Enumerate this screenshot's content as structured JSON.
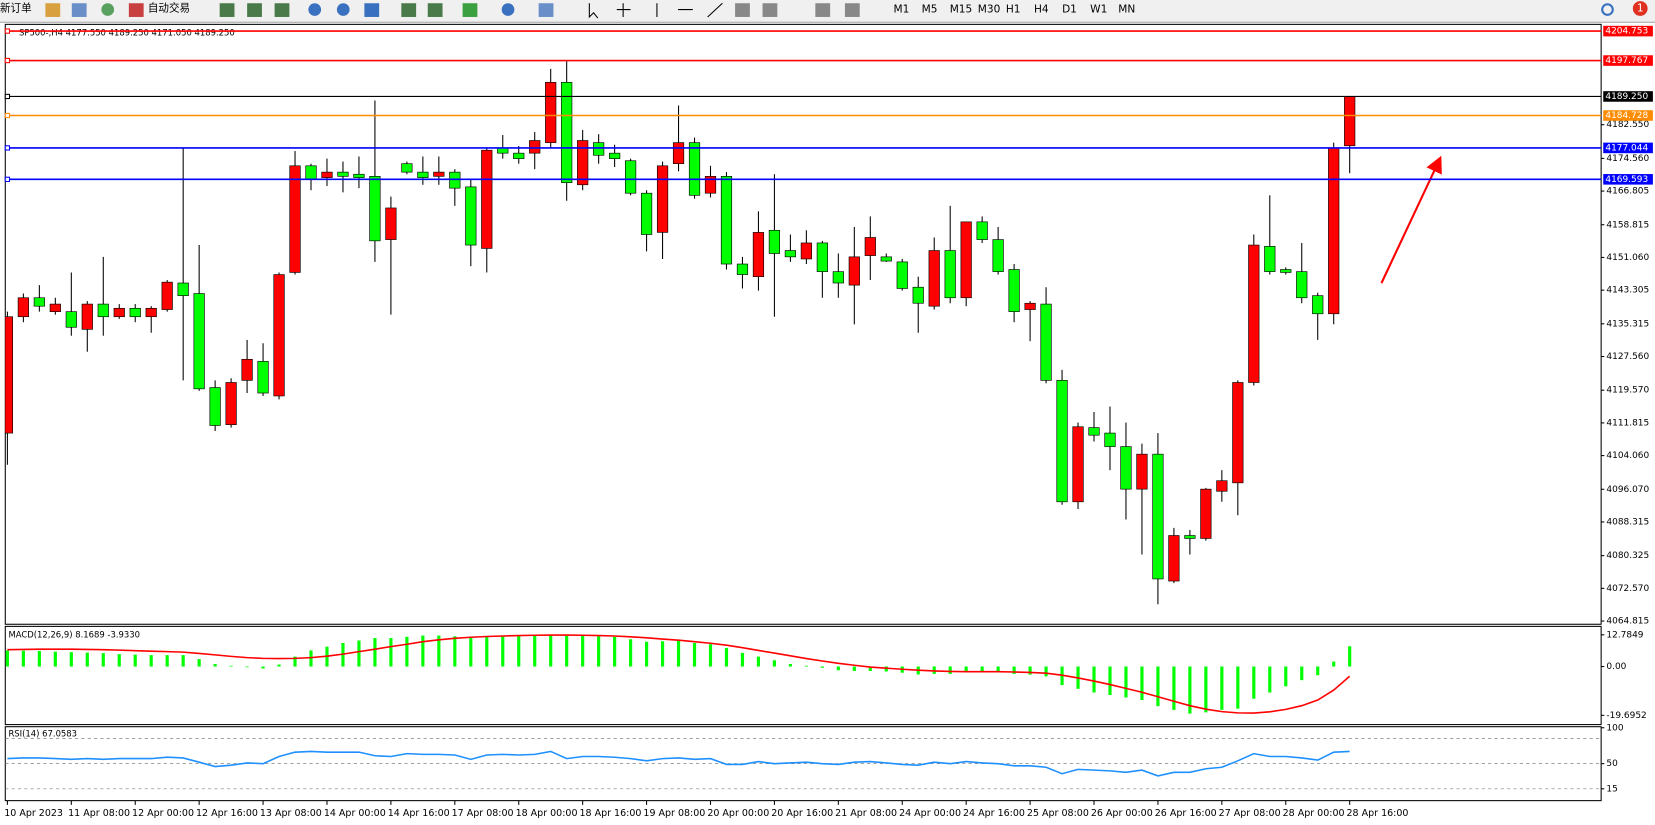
{
  "toolbar": {
    "new_order": "新订单",
    "auto_trading": "自动交易",
    "timeframes": [
      "M1",
      "M5",
      "M15",
      "M30",
      "H1",
      "H4",
      "D1",
      "W1",
      "MN"
    ],
    "badge": "1"
  },
  "chart_data": [
    {
      "type": "candlestick",
      "title": "SP500-,H4  4177.550 4189.250 4171.050 4189.250",
      "categories": [
        "10 Apr 2023",
        null,
        null,
        null,
        "11 Apr 08:00",
        null,
        null,
        null,
        "12 Apr 00:00",
        null,
        null,
        null,
        "12 Apr 16:00",
        null,
        null,
        null,
        "13 Apr 08:00",
        null,
        null,
        null,
        "14 Apr 00:00",
        null,
        null,
        null,
        "14 Apr 16:00",
        null,
        null,
        null,
        "17 Apr 08:00",
        null,
        null,
        null,
        "18 Apr 00:00",
        null,
        null,
        null,
        "18 Apr 16:00",
        null,
        null,
        null,
        "19 Apr 08:00",
        null,
        null,
        null,
        "20 Apr 00:00",
        null,
        null,
        null,
        "20 Apr 16:00",
        null,
        null,
        null,
        "21 Apr 08:00",
        null,
        null,
        null,
        "24 Apr 00:00",
        null,
        null,
        null,
        "24 Apr 16:00",
        null,
        null,
        null,
        "25 Apr 08:00",
        null,
        null,
        null,
        "26 Apr 00:00",
        null,
        null,
        null,
        "26 Apr 16:00",
        null,
        null,
        null,
        "27 Apr 08:00",
        null,
        null,
        null,
        "28 Apr 00:00",
        null,
        null,
        null,
        "28 Apr 16:00"
      ],
      "open": [
        4109.4,
        4137.0,
        4141.5,
        4138.2,
        4138.2,
        4134.0,
        4140.0,
        4137.0,
        4139.0,
        4137.0,
        4138.7,
        4145.0,
        4142.5,
        4120.2,
        4111.4,
        4121.9,
        4126.4,
        4118.2,
        4147.5,
        4172.8,
        4170.0,
        4171.3,
        4170.8,
        4170.3,
        4155.3,
        4173.3,
        4171.3,
        4170.3,
        4171.3,
        4167.8,
        4153.2,
        4177.0,
        4175.8,
        4175.8,
        4178.3,
        4192.6,
        4168.3,
        4178.3,
        4175.8,
        4174.0,
        4166.3,
        4157.0,
        4173.3,
        4178.3,
        4166.3,
        4170.3,
        4149.5,
        4146.5,
        4157.5,
        4152.7,
        4150.7,
        4154.5,
        4147.7,
        4144.5,
        4151.5,
        4151.2,
        4150.0,
        4144.0,
        4139.5,
        4152.7,
        4141.5,
        4159.5,
        4155.3,
        4148.2,
        4138.7,
        4140.0,
        4121.9,
        4093.1,
        4110.7,
        4109.4,
        4106.2,
        4096.1,
        4104.4,
        4074.3,
        4085.1,
        4084.4,
        4095.6,
        4097.6,
        4121.4,
        4153.7,
        4148.2,
        4147.7,
        4142.0,
        4137.7,
        4177.55
      ],
      "high": [
        4138.2,
        4142.5,
        4144.5,
        4141.5,
        4147.5,
        4140.7,
        4151.2,
        4140.0,
        4140.0,
        4139.5,
        4145.7,
        4177.0,
        4154.0,
        4121.9,
        4122.4,
        4131.5,
        4130.7,
        4147.5,
        4176.3,
        4173.3,
        4174.5,
        4173.8,
        4175.0,
        4188.3,
        4165.5,
        4173.8,
        4175.0,
        4175.0,
        4172.0,
        4169.5,
        4177.0,
        4180.1,
        4177.5,
        4180.8,
        4195.8,
        4197.6,
        4181.3,
        4180.3,
        4177.8,
        4174.5,
        4167.0,
        4173.8,
        4187.1,
        4179.5,
        4172.8,
        4171.3,
        4151.2,
        4162.0,
        4170.8,
        4156.5,
        4157.5,
        4155.0,
        4152.0,
        4158.3,
        4160.8,
        4152.0,
        4150.7,
        4146.5,
        4155.8,
        4163.3,
        4159.5,
        4160.8,
        4158.3,
        4149.5,
        4140.7,
        4144.0,
        4124.4,
        4111.9,
        4114.4,
        4115.7,
        4111.9,
        4106.9,
        4109.4,
        4086.9,
        4086.4,
        4096.4,
        4100.6,
        4121.9,
        4156.5,
        4165.8,
        4148.7,
        4154.5,
        4142.7,
        4178.3,
        4189.25
      ],
      "low": [
        4101.9,
        4135.7,
        4138.2,
        4137.5,
        4132.5,
        4128.7,
        4132.5,
        4136.5,
        4135.7,
        4133.2,
        4138.2,
        4121.9,
        4119.4,
        4109.9,
        4110.7,
        4118.9,
        4118.2,
        4117.4,
        4147.0,
        4167.0,
        4168.0,
        4166.5,
        4167.5,
        4150.0,
        4137.5,
        4170.8,
        4168.3,
        4168.3,
        4163.3,
        4149.0,
        4147.5,
        4174.5,
        4173.3,
        4172.0,
        4177.0,
        4164.5,
        4167.0,
        4173.3,
        4172.5,
        4165.8,
        4152.5,
        4150.7,
        4171.5,
        4165.0,
        4165.3,
        4148.2,
        4143.7,
        4143.2,
        4137.0,
        4150.0,
        4149.5,
        4141.5,
        4141.5,
        4135.2,
        4145.7,
        4150.0,
        4143.2,
        4133.2,
        4138.7,
        4140.2,
        4139.5,
        4154.5,
        4147.0,
        4135.7,
        4131.2,
        4121.2,
        4092.4,
        4091.4,
        4107.4,
        4100.6,
        4088.9,
        4080.6,
        4068.8,
        4073.8,
        4080.6,
        4083.9,
        4093.1,
        4089.9,
        4120.7,
        4147.0,
        4147.0,
        4140.2,
        4131.5,
        4135.2,
        4171.05
      ],
      "close": [
        4137.0,
        4141.5,
        4139.5,
        4140.0,
        4134.5,
        4140.0,
        4137.0,
        4139.0,
        4137.0,
        4139.0,
        4145.2,
        4142.0,
        4119.9,
        4111.2,
        4121.4,
        4126.9,
        4118.9,
        4147.0,
        4172.8,
        4169.5,
        4171.3,
        4170.3,
        4170.0,
        4155.0,
        4162.8,
        4171.3,
        4170.0,
        4171.3,
        4167.5,
        4154.0,
        4176.5,
        4175.8,
        4174.5,
        4178.8,
        4192.6,
        4168.8,
        4178.8,
        4175.3,
        4174.5,
        4166.3,
        4156.5,
        4172.8,
        4178.3,
        4165.8,
        4170.3,
        4149.5,
        4147.0,
        4157.0,
        4152.0,
        4151.2,
        4154.5,
        4147.7,
        4145.0,
        4151.2,
        4155.8,
        4150.2,
        4143.7,
        4140.2,
        4152.7,
        4141.5,
        4159.5,
        4155.3,
        4147.7,
        4138.2,
        4140.2,
        4121.9,
        4093.1,
        4110.9,
        4108.9,
        4106.2,
        4096.1,
        4104.4,
        4074.8,
        4085.1,
        4084.4,
        4096.1,
        4098.1,
        4121.4,
        4154.0,
        4147.7,
        4147.5,
        4141.5,
        4137.7,
        4177.0,
        4189.25
      ],
      "up_color": "#ff0000",
      "down_color": "#00ff00",
      "ylim": [
        4064.3,
        4205.85
      ],
      "yticks": [
        {
          "value": 4182.55,
          "label": "4182.550"
        },
        {
          "value": 4174.56,
          "label": "4174.560"
        },
        4166.805,
        4158.815,
        {
          "value": 4151.06,
          "label": "4151.060"
        },
        4143.305,
        4135.315,
        {
          "value": 4127.56,
          "label": "4127.560"
        },
        {
          "value": 4119.57,
          "label": "4119.570"
        },
        4111.815,
        {
          "value": 4104.06,
          "label": "4104.060"
        },
        {
          "value": 4096.07,
          "label": "4096.070"
        },
        4088.315,
        4080.325,
        {
          "value": 4072.57,
          "label": "4072.570"
        },
        4064.815
      ],
      "hlines": [
        {
          "value": 4204.753,
          "color": "#ff0000"
        },
        {
          "value": 4197.767,
          "color": "#ff0000"
        },
        {
          "value": 4189.25,
          "label": "4189.250",
          "color": "#000000"
        },
        {
          "value": 4184.728,
          "color": "#ff8c00"
        },
        {
          "value": 4177.044,
          "color": "#0000ff"
        },
        {
          "value": 4169.593,
          "color": "#0000ff"
        }
      ],
      "grid": false
    },
    {
      "type": "macd",
      "title": "MACD(12,26,9) 8.1689 -3.9330",
      "series": [
        {
          "type": "bar",
          "color": "#00ff00",
          "values": [
            6.5,
            6.4,
            6.3,
            6.0,
            5.8,
            5.6,
            5.4,
            5.0,
            4.8,
            4.6,
            4.6,
            4.6,
            3.0,
            1.0,
            0.3,
            -0.3,
            -0.8,
            0.8,
            4.0,
            6.5,
            8.0,
            9.5,
            10.5,
            11.5,
            11.5,
            12.0,
            12.5,
            12.5,
            12.2,
            11.5,
            12.0,
            12.3,
            12.3,
            12.5,
            12.7,
            12.4,
            12.4,
            12.2,
            12.0,
            11.0,
            10.0,
            10.2,
            10.5,
            9.5,
            9.0,
            7.5,
            5.5,
            4.0,
            2.5,
            1.0,
            0.3,
            -0.5,
            -1.5,
            -1.8,
            -1.8,
            -2.0,
            -2.5,
            -3.2,
            -3.0,
            -3.0,
            -2.4,
            -2.0,
            -2.2,
            -3.0,
            -3.3,
            -4.0,
            -7.5,
            -9.0,
            -10.5,
            -11.5,
            -12.5,
            -13.5,
            -16.0,
            -17.5,
            -19.0,
            -18.5,
            -17.5,
            -17.0,
            -13.0,
            -10.5,
            -8.0,
            -5.5,
            -3.5,
            2.0,
            8.1689
          ]
        },
        {
          "type": "line",
          "color": "#ff0000",
          "values": [
            6.8,
            6.9,
            7.0,
            7.0,
            7.0,
            6.9,
            6.8,
            6.6,
            6.4,
            6.2,
            6.0,
            5.8,
            5.3,
            4.7,
            4.1,
            3.6,
            3.3,
            3.2,
            3.3,
            3.6,
            4.2,
            5.0,
            6.0,
            7.0,
            8.0,
            9.0,
            10.0,
            10.8,
            11.4,
            11.8,
            12.1,
            12.3,
            12.5,
            12.6,
            12.7,
            12.7,
            12.6,
            12.5,
            12.3,
            12.0,
            11.6,
            11.1,
            10.6,
            10.0,
            9.4,
            8.6,
            7.6,
            6.5,
            5.4,
            4.3,
            3.2,
            2.2,
            1.3,
            0.5,
            -0.2,
            -0.7,
            -1.1,
            -1.5,
            -1.8,
            -2.0,
            -2.1,
            -2.1,
            -2.1,
            -2.2,
            -2.4,
            -2.7,
            -3.5,
            -4.6,
            -5.9,
            -7.3,
            -8.8,
            -10.4,
            -12.2,
            -14.0,
            -15.8,
            -17.2,
            -18.2,
            -18.7,
            -18.8,
            -18.3,
            -17.3,
            -15.8,
            -13.5,
            -9.5,
            -3.933
          ]
        }
      ],
      "ylim": [
        -23.44,
        16.2
      ],
      "yticks": [
        12.7849,
        {
          "value": 0,
          "label": "0.00"
        },
        -19.6952
      ]
    },
    {
      "type": "line",
      "title": "RSI(14) 67.0583",
      "series": [
        {
          "color": "#1e90ff",
          "values": [
            57,
            58,
            58,
            57,
            56,
            57,
            56,
            57,
            57,
            57,
            59,
            58,
            52,
            46,
            48,
            51,
            50,
            60,
            66,
            67,
            66,
            66,
            66,
            61,
            60,
            64,
            63,
            63,
            62,
            56,
            62,
            63,
            62,
            63,
            67,
            57,
            60,
            60,
            59,
            57,
            54,
            57,
            58,
            56,
            57,
            49,
            49,
            53,
            50,
            51,
            52,
            50,
            49,
            52,
            53,
            51,
            49,
            48,
            52,
            50,
            53,
            51,
            50,
            47,
            47,
            45,
            36,
            42,
            41,
            40,
            38,
            41,
            33,
            38,
            38,
            43,
            45,
            54,
            64,
            60,
            60,
            58,
            55,
            66,
            67.0583
          ]
        }
      ],
      "ylim": [
        0,
        100
      ],
      "yticks": [
        100,
        50,
        15
      ],
      "levels": [
        85,
        50,
        15
      ]
    }
  ]
}
